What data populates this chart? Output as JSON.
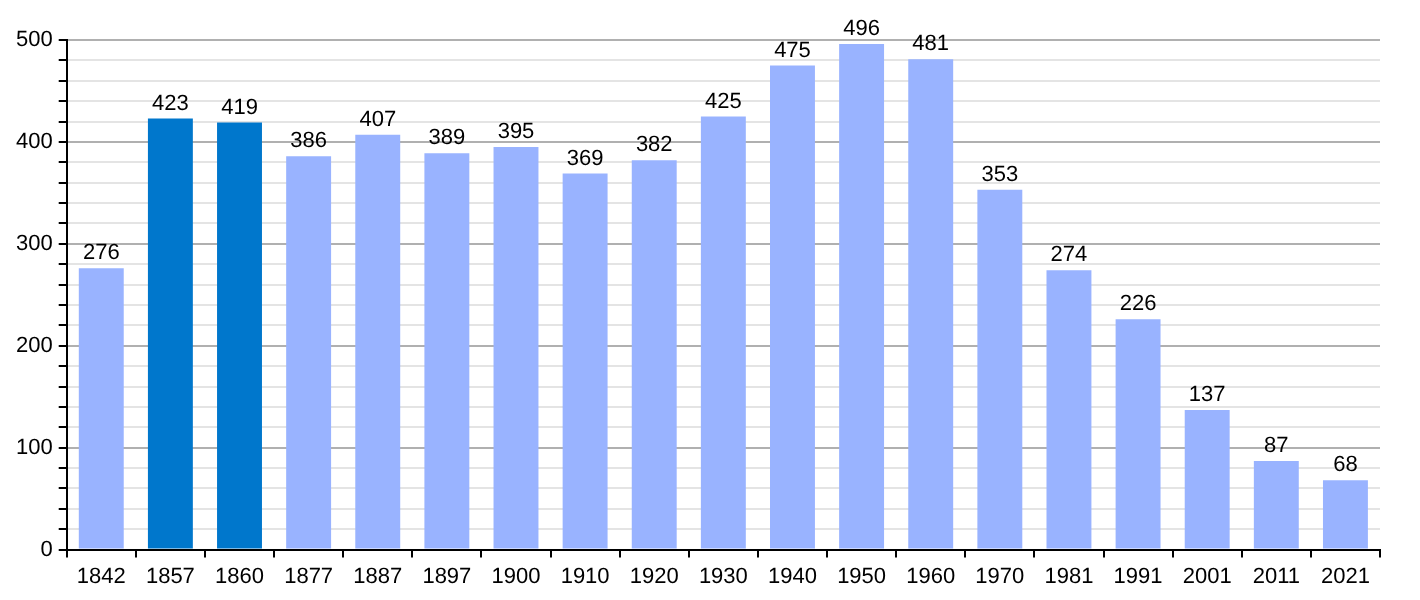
{
  "chart_data": {
    "type": "bar",
    "categories": [
      "1842",
      "1857",
      "1860",
      "1877",
      "1887",
      "1897",
      "1900",
      "1910",
      "1920",
      "1930",
      "1940",
      "1950",
      "1960",
      "1970",
      "1981",
      "1991",
      "2001",
      "2011",
      "2021"
    ],
    "values": [
      276,
      423,
      419,
      386,
      407,
      389,
      395,
      369,
      382,
      425,
      475,
      496,
      481,
      353,
      274,
      226,
      137,
      87,
      68
    ],
    "colors": [
      "#99b3ff",
      "#0077cc",
      "#0077cc",
      "#99b3ff",
      "#99b3ff",
      "#99b3ff",
      "#99b3ff",
      "#99b3ff",
      "#99b3ff",
      "#99b3ff",
      "#99b3ff",
      "#99b3ff",
      "#99b3ff",
      "#99b3ff",
      "#99b3ff",
      "#99b3ff",
      "#99b3ff",
      "#99b3ff",
      "#99b3ff"
    ],
    "ylim": [
      0,
      500
    ],
    "yticks": [
      0,
      {
        "value": 20,
        "label": null
      },
      {
        "value": 40,
        "label": null
      },
      {
        "value": 60,
        "label": null
      },
      {
        "value": 80,
        "label": null
      },
      100,
      {
        "value": 120,
        "label": null
      },
      {
        "value": 140,
        "label": null
      },
      {
        "value": 160,
        "label": null
      },
      {
        "value": 180,
        "label": null
      },
      200,
      {
        "value": 220,
        "label": null
      },
      {
        "value": 240,
        "label": null
      },
      {
        "value": 260,
        "label": null
      },
      {
        "value": 280,
        "label": null
      },
      300,
      {
        "value": 320,
        "label": null
      },
      {
        "value": 340,
        "label": null
      },
      {
        "value": 360,
        "label": null
      },
      {
        "value": 380,
        "label": null
      },
      400,
      {
        "value": 420,
        "label": null
      },
      {
        "value": 440,
        "label": null
      },
      {
        "value": 460,
        "label": null
      },
      {
        "value": 480,
        "label": null
      },
      500
    ],
    "grid": true,
    "data_labels": true,
    "legend": false
  }
}
